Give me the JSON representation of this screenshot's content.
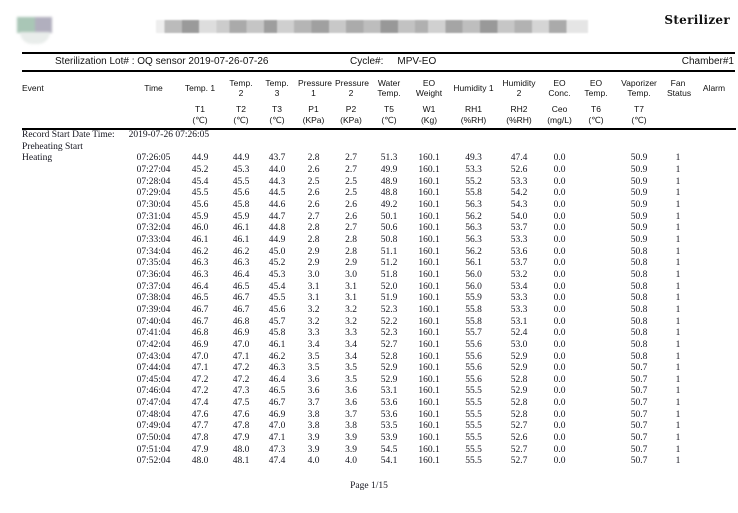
{
  "header": {
    "brand": "Sterilizer",
    "lot": "Sterilization Lot# : OQ sensor 2019-07-26-07-26",
    "cycle_label": "Cycle#:",
    "cycle_value": "MPV-EO",
    "chamber": "Chamber#1"
  },
  "table": {
    "columns": [
      {
        "key": "event",
        "label": "Event",
        "symbol": "",
        "unit": ""
      },
      {
        "key": "time",
        "label": "Time",
        "symbol": "",
        "unit": ""
      },
      {
        "key": "t1",
        "label": "Temp. 1",
        "symbol": "T1",
        "unit": "(℃)"
      },
      {
        "key": "t2",
        "label": "Temp. 2",
        "symbol": "T2",
        "unit": "(℃)"
      },
      {
        "key": "t3",
        "label": "Temp. 3",
        "symbol": "T3",
        "unit": "(℃)"
      },
      {
        "key": "p1",
        "label": "Pressure 1",
        "symbol": "P1",
        "unit": "(KPa)"
      },
      {
        "key": "p2",
        "label": "Pressure 2",
        "symbol": "P2",
        "unit": "(KPa)"
      },
      {
        "key": "t5",
        "label": "Water Temp.",
        "symbol": "T5",
        "unit": "(℃)"
      },
      {
        "key": "w1",
        "label": "EO Weight",
        "symbol": "W1",
        "unit": "(Kg)"
      },
      {
        "key": "rh1",
        "label": "Humidity 1",
        "symbol": "RH1",
        "unit": "(%RH)"
      },
      {
        "key": "rh2",
        "label": "Humidity 2",
        "symbol": "RH2",
        "unit": "(%RH)"
      },
      {
        "key": "ceo",
        "label": "EO Conc.",
        "symbol": "Ceo",
        "unit": "(mg/L)"
      },
      {
        "key": "t6",
        "label": "EO Temp.",
        "symbol": "T6",
        "unit": "(℃)"
      },
      {
        "key": "t7",
        "label": "Vaporizer Temp.",
        "symbol": "T7",
        "unit": "(℃)"
      },
      {
        "key": "fan",
        "label": "Fan Status",
        "symbol": "",
        "unit": ""
      },
      {
        "key": "alarm",
        "label": "Alarm",
        "symbol": "",
        "unit": ""
      }
    ],
    "record_start": {
      "label": "Record Start Date Time:",
      "value": "2019-07-26 07:26:05"
    },
    "preheating_label": "Preheating Start",
    "rows": [
      [
        "Heating",
        "07:26:05",
        "44.9",
        "44.9",
        "43.7",
        "2.8",
        "2.7",
        "51.3",
        "160.1",
        "49.3",
        "47.4",
        "0.0",
        "",
        "50.9",
        "1",
        ""
      ],
      [
        "",
        "07:27:04",
        "45.2",
        "45.3",
        "44.0",
        "2.6",
        "2.7",
        "49.9",
        "160.1",
        "53.3",
        "52.6",
        "0.0",
        "",
        "50.9",
        "1",
        ""
      ],
      [
        "",
        "07:28:04",
        "45.4",
        "45.5",
        "44.3",
        "2.5",
        "2.5",
        "48.9",
        "160.1",
        "55.2",
        "53.3",
        "0.0",
        "",
        "50.9",
        "1",
        ""
      ],
      [
        "",
        "07:29:04",
        "45.5",
        "45.6",
        "44.5",
        "2.6",
        "2.5",
        "48.8",
        "160.1",
        "55.8",
        "54.2",
        "0.0",
        "",
        "50.9",
        "1",
        ""
      ],
      [
        "",
        "07:30:04",
        "45.6",
        "45.8",
        "44.6",
        "2.6",
        "2.6",
        "49.2",
        "160.1",
        "56.3",
        "54.3",
        "0.0",
        "",
        "50.9",
        "1",
        ""
      ],
      [
        "",
        "07:31:04",
        "45.9",
        "45.9",
        "44.7",
        "2.7",
        "2.6",
        "50.1",
        "160.1",
        "56.2",
        "54.0",
        "0.0",
        "",
        "50.9",
        "1",
        ""
      ],
      [
        "",
        "07:32:04",
        "46.0",
        "46.1",
        "44.8",
        "2.8",
        "2.7",
        "50.6",
        "160.1",
        "56.3",
        "53.7",
        "0.0",
        "",
        "50.9",
        "1",
        ""
      ],
      [
        "",
        "07:33:04",
        "46.1",
        "46.1",
        "44.9",
        "2.8",
        "2.8",
        "50.8",
        "160.1",
        "56.3",
        "53.3",
        "0.0",
        "",
        "50.9",
        "1",
        ""
      ],
      [
        "",
        "07:34:04",
        "46.2",
        "46.2",
        "45.0",
        "2.9",
        "2.8",
        "51.1",
        "160.1",
        "56.2",
        "53.6",
        "0.0",
        "",
        "50.8",
        "1",
        ""
      ],
      [
        "",
        "07:35:04",
        "46.3",
        "46.3",
        "45.2",
        "2.9",
        "2.9",
        "51.2",
        "160.1",
        "56.1",
        "53.7",
        "0.0",
        "",
        "50.8",
        "1",
        ""
      ],
      [
        "",
        "07:36:04",
        "46.3",
        "46.4",
        "45.3",
        "3.0",
        "3.0",
        "51.8",
        "160.1",
        "56.0",
        "53.2",
        "0.0",
        "",
        "50.8",
        "1",
        ""
      ],
      [
        "",
        "07:37:04",
        "46.4",
        "46.5",
        "45.4",
        "3.1",
        "3.1",
        "52.0",
        "160.1",
        "56.0",
        "53.4",
        "0.0",
        "",
        "50.8",
        "1",
        ""
      ],
      [
        "",
        "07:38:04",
        "46.5",
        "46.7",
        "45.5",
        "3.1",
        "3.1",
        "51.9",
        "160.1",
        "55.9",
        "53.3",
        "0.0",
        "",
        "50.8",
        "1",
        ""
      ],
      [
        "",
        "07:39:04",
        "46.7",
        "46.7",
        "45.6",
        "3.2",
        "3.2",
        "52.3",
        "160.1",
        "55.8",
        "53.3",
        "0.0",
        "",
        "50.8",
        "1",
        ""
      ],
      [
        "",
        "07:40:04",
        "46.7",
        "46.8",
        "45.7",
        "3.2",
        "3.2",
        "52.2",
        "160.1",
        "55.8",
        "53.1",
        "0.0",
        "",
        "50.8",
        "1",
        ""
      ],
      [
        "",
        "07:41:04",
        "46.8",
        "46.9",
        "45.8",
        "3.3",
        "3.3",
        "52.3",
        "160.1",
        "55.7",
        "52.4",
        "0.0",
        "",
        "50.8",
        "1",
        ""
      ],
      [
        "",
        "07:42:04",
        "46.9",
        "47.0",
        "46.1",
        "3.4",
        "3.4",
        "52.7",
        "160.1",
        "55.6",
        "53.0",
        "0.0",
        "",
        "50.8",
        "1",
        ""
      ],
      [
        "",
        "07:43:04",
        "47.0",
        "47.1",
        "46.2",
        "3.5",
        "3.4",
        "52.8",
        "160.1",
        "55.6",
        "52.9",
        "0.0",
        "",
        "50.8",
        "1",
        ""
      ],
      [
        "",
        "07:44:04",
        "47.1",
        "47.2",
        "46.3",
        "3.5",
        "3.5",
        "52.9",
        "160.1",
        "55.6",
        "52.9",
        "0.0",
        "",
        "50.7",
        "1",
        ""
      ],
      [
        "",
        "07:45:04",
        "47.2",
        "47.2",
        "46.4",
        "3.6",
        "3.5",
        "52.9",
        "160.1",
        "55.6",
        "52.8",
        "0.0",
        "",
        "50.7",
        "1",
        ""
      ],
      [
        "",
        "07:46:04",
        "47.2",
        "47.3",
        "46.5",
        "3.6",
        "3.6",
        "53.1",
        "160.1",
        "55.5",
        "52.9",
        "0.0",
        "",
        "50.7",
        "1",
        ""
      ],
      [
        "",
        "07:47:04",
        "47.4",
        "47.5",
        "46.7",
        "3.7",
        "3.6",
        "53.6",
        "160.1",
        "55.5",
        "52.8",
        "0.0",
        "",
        "50.7",
        "1",
        ""
      ],
      [
        "",
        "07:48:04",
        "47.6",
        "47.6",
        "46.9",
        "3.8",
        "3.7",
        "53.6",
        "160.1",
        "55.5",
        "52.8",
        "0.0",
        "",
        "50.7",
        "1",
        ""
      ],
      [
        "",
        "07:49:04",
        "47.7",
        "47.8",
        "47.0",
        "3.8",
        "3.8",
        "53.5",
        "160.1",
        "55.5",
        "52.7",
        "0.0",
        "",
        "50.7",
        "1",
        ""
      ],
      [
        "",
        "07:50:04",
        "47.8",
        "47.9",
        "47.1",
        "3.9",
        "3.9",
        "53.9",
        "160.1",
        "55.5",
        "52.6",
        "0.0",
        "",
        "50.7",
        "1",
        ""
      ],
      [
        "",
        "07:51:04",
        "47.9",
        "48.0",
        "47.3",
        "3.9",
        "3.9",
        "54.5",
        "160.1",
        "55.5",
        "52.7",
        "0.0",
        "",
        "50.7",
        "1",
        ""
      ],
      [
        "",
        "07:52:04",
        "48.0",
        "48.1",
        "47.4",
        "4.0",
        "4.0",
        "54.1",
        "160.1",
        "55.5",
        "52.7",
        "0.0",
        "",
        "50.7",
        "1",
        ""
      ]
    ]
  },
  "footer": {
    "page": "Page 1/15"
  }
}
